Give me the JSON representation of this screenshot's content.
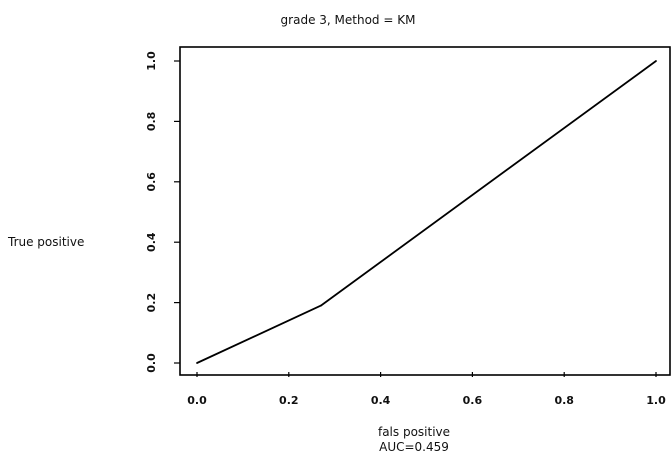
{
  "chart_data": {
    "type": "line",
    "title": "grade 3, Method = KM",
    "xlabel": "fals positive",
    "ylabel": "True positive",
    "annotation": "AUC=0.459",
    "xlim": [
      0,
      1
    ],
    "ylim": [
      0,
      1
    ],
    "x_ticks": [
      0.0,
      0.2,
      0.4,
      0.6,
      0.8,
      1.0
    ],
    "x_tick_labels": [
      "0.0",
      "0.2",
      "0.4",
      "0.6",
      "0.8",
      "1.0"
    ],
    "y_ticks": [
      0.0,
      0.2,
      0.4,
      0.6,
      0.8,
      1.0
    ],
    "y_tick_labels": [
      "0.0",
      "0.2",
      "0.4",
      "0.6",
      "0.8",
      "1.0"
    ],
    "grid": false,
    "series": [
      {
        "x": [
          0.0,
          0.27,
          1.0
        ],
        "y": [
          0.0,
          0.19,
          1.0
        ],
        "color": "#000000"
      }
    ]
  }
}
